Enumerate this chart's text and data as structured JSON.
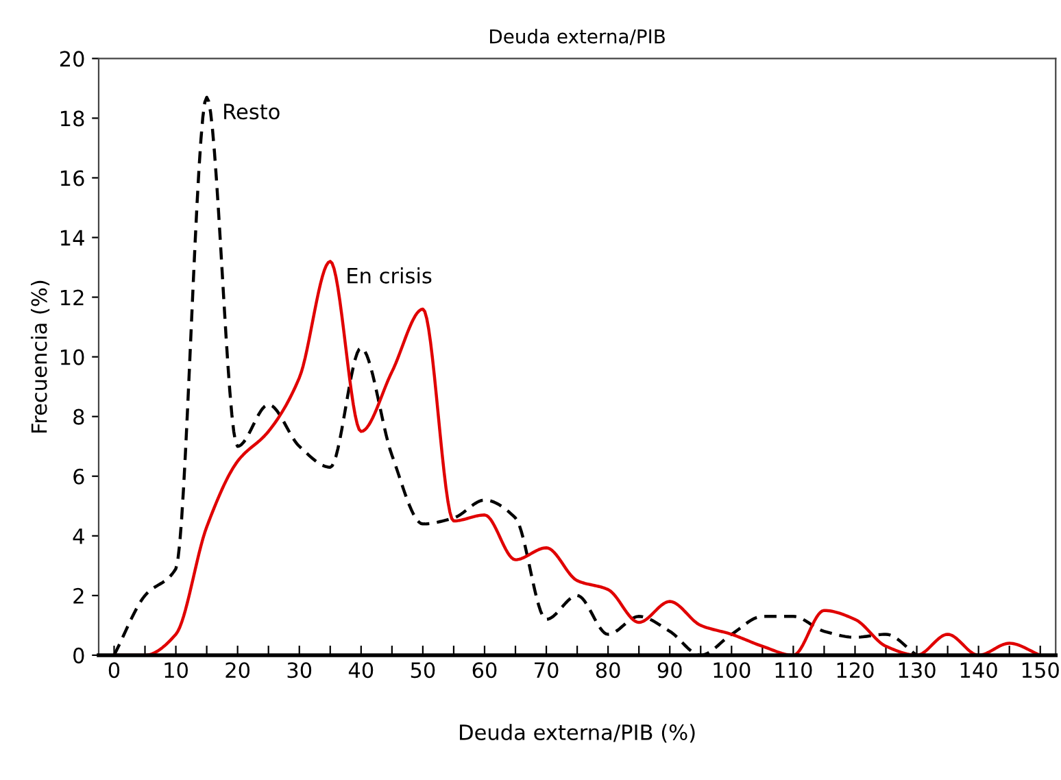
{
  "chart_data": {
    "type": "line",
    "title": "Deuda externa/PIB",
    "xlabel": "Deuda externa/PIB (%)",
    "ylabel": "Frecuencia (%)",
    "xlim": [
      -2.5,
      152.5
    ],
    "ylim": [
      0,
      20
    ],
    "xticks": [
      0,
      {
        "value": 5,
        "label": null
      },
      10,
      {
        "value": 15,
        "label": null
      },
      20,
      {
        "value": 25,
        "label": null
      },
      30,
      {
        "value": 35,
        "label": null
      },
      40,
      {
        "value": 45,
        "label": null
      },
      50,
      {
        "value": 55,
        "label": null
      },
      60,
      {
        "value": 65,
        "label": null
      },
      70,
      {
        "value": 75,
        "label": null
      },
      80,
      {
        "value": 85,
        "label": null
      },
      90,
      {
        "value": 95,
        "label": null
      },
      100,
      {
        "value": 105,
        "label": null
      },
      110,
      {
        "value": 115,
        "label": null
      },
      120,
      {
        "value": 125,
        "label": null
      },
      130,
      {
        "value": 135,
        "label": null
      },
      140,
      {
        "value": 145,
        "label": null
      },
      150
    ],
    "yticks": [
      0,
      2,
      4,
      6,
      8,
      10,
      12,
      14,
      16,
      18,
      20
    ],
    "grid": false,
    "legend": false,
    "series": [
      {
        "name": "Resto",
        "color": "#000000",
        "line_style": "dashed",
        "x": [
          0,
          5,
          10,
          15,
          20,
          25,
          30,
          35,
          40,
          45,
          50,
          55,
          60,
          65,
          70,
          75,
          80,
          85,
          90,
          95,
          100,
          105,
          110,
          115,
          120,
          125,
          130
        ],
        "values": [
          0,
          2.0,
          2.9,
          18.7,
          7.0,
          8.4,
          7.0,
          6.3,
          10.3,
          6.7,
          4.4,
          4.6,
          5.2,
          4.6,
          1.2,
          2.0,
          0.7,
          1.3,
          0.8,
          0,
          0.7,
          1.3,
          1.3,
          0.8,
          0.6,
          0.7,
          0
        ]
      },
      {
        "name": "En crisis",
        "color": "#e00000",
        "line_style": "solid",
        "x": [
          0,
          5,
          10,
          15,
          20,
          25,
          30,
          35,
          40,
          45,
          50,
          55,
          60,
          65,
          70,
          75,
          80,
          85,
          90,
          95,
          100,
          105,
          110,
          115,
          120,
          125,
          130,
          135,
          140,
          145,
          150
        ],
        "values": [
          0,
          0,
          0.7,
          4.3,
          6.5,
          7.5,
          9.3,
          13.2,
          7.5,
          9.5,
          11.6,
          4.5,
          4.7,
          3.2,
          3.6,
          2.5,
          2.2,
          1.1,
          1.8,
          1.0,
          0.7,
          0.3,
          0,
          1.5,
          1.2,
          0.3,
          0,
          0.7,
          0,
          0.4,
          0
        ]
      }
    ]
  }
}
